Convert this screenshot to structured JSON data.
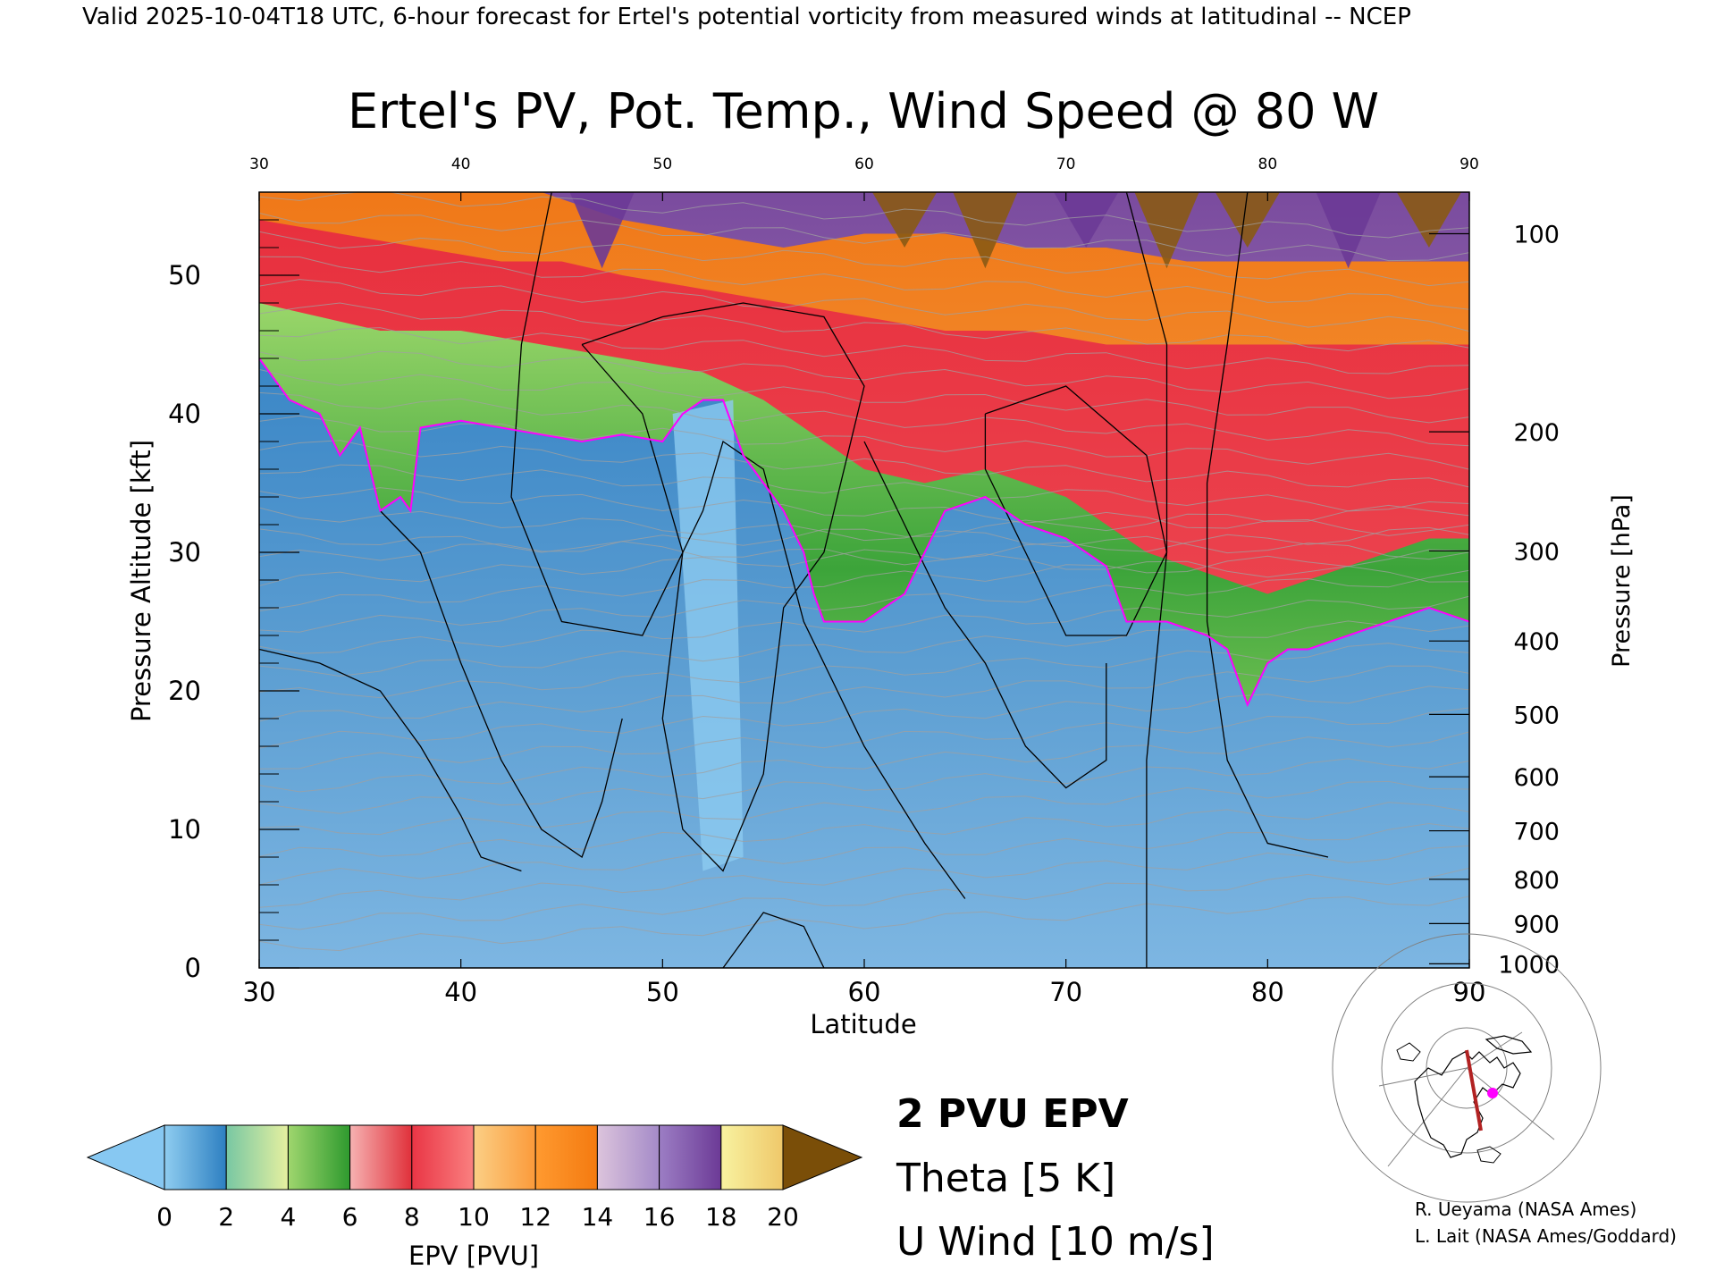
{
  "header": "Valid 2025-10-04T18 UTC, 6-hour forecast for Ertel's potential vorticity from measured winds at latitudinal -- NCEP",
  "chart_data": {
    "type": "heatmap",
    "title": "Ertel's PV, Pot. Temp., Wind Speed @ 80 W",
    "xlabel": "Latitude",
    "ylabel": "Pressure Altitude [kft]",
    "ylabel_right": "Pressure [hPa]",
    "xlim": [
      30,
      90
    ],
    "ylim": [
      0,
      56
    ],
    "x_ticks": [
      30,
      40,
      50,
      60,
      70,
      80,
      90
    ],
    "x_tick_labels": [
      "30",
      "40",
      "50",
      "60",
      "70",
      "80",
      "90"
    ],
    "top_tick_labels": [
      "30",
      "40",
      "50",
      "60",
      "70",
      "80",
      "90"
    ],
    "y_ticks": [
      0,
      10,
      20,
      30,
      40,
      50
    ],
    "y_tick_labels": [
      "0",
      "10",
      "20",
      "30",
      "40",
      "50"
    ],
    "pressure_axis": [
      {
        "label": "100",
        "kft": 53
      },
      {
        "label": "200",
        "kft": 38.7
      },
      {
        "label": "300",
        "kft": 30.1
      },
      {
        "label": "400",
        "kft": 23.6
      },
      {
        "label": "500",
        "kft": 18.3
      },
      {
        "label": "600",
        "kft": 13.8
      },
      {
        "label": "700",
        "kft": 9.9
      },
      {
        "label": "800",
        "kft": 6.4
      },
      {
        "label": "900",
        "kft": 3.2
      },
      {
        "label": "1000",
        "kft": 0.3
      }
    ],
    "fill_field": "EPV [PVU]",
    "pv_levels": [
      0,
      2,
      4,
      6,
      8,
      10,
      12,
      14,
      16,
      18,
      20
    ],
    "colorbar": {
      "label": "EPV [PVU]",
      "tick_labels": [
        "0",
        "2",
        "4",
        "6",
        "8",
        "10",
        "12",
        "14",
        "16",
        "18",
        "20"
      ],
      "under_color": "#87c8f2",
      "over_color": "#7a4e08",
      "segments": [
        [
          "#8fcdf0",
          "#2d7fc1"
        ],
        [
          "#78c7a3",
          "#e6f0a0"
        ],
        [
          "#9fd66e",
          "#2e9a2e"
        ],
        [
          "#f6b2b2",
          "#e0303a"
        ],
        [
          "#e93545",
          "#fa8080"
        ],
        [
          "#fbcf85",
          "#fb9a3a"
        ],
        [
          "#ff9a30",
          "#f47a10"
        ],
        [
          "#dcc4dc",
          "#a48ac8"
        ],
        [
          "#9c7ec4",
          "#6c3a96"
        ],
        [
          "#f8f2a0",
          "#efc86a"
        ]
      ]
    },
    "tropopause_2pvu_kft": [
      [
        30,
        44
      ],
      [
        31.5,
        41
      ],
      [
        33,
        40
      ],
      [
        34,
        37
      ],
      [
        35,
        39
      ],
      [
        36,
        33
      ],
      [
        37,
        34
      ],
      [
        37.5,
        33
      ],
      [
        38,
        39
      ],
      [
        40,
        39.5
      ],
      [
        42,
        39
      ],
      [
        44,
        38.5
      ],
      [
        46,
        38
      ],
      [
        48,
        38.5
      ],
      [
        50,
        38
      ],
      [
        51,
        40
      ],
      [
        52,
        41
      ],
      [
        53,
        41
      ],
      [
        54,
        37
      ],
      [
        55,
        35
      ],
      [
        56,
        33
      ],
      [
        57,
        30
      ],
      [
        57.5,
        27
      ],
      [
        58,
        25
      ],
      [
        60,
        25
      ],
      [
        62,
        27
      ],
      [
        64,
        33
      ],
      [
        66,
        34
      ],
      [
        68,
        32
      ],
      [
        70,
        31
      ],
      [
        72,
        29
      ],
      [
        73,
        25
      ],
      [
        75,
        25
      ],
      [
        77,
        24
      ],
      [
        78,
        23
      ],
      [
        79,
        19
      ],
      [
        80,
        22
      ],
      [
        81,
        23
      ],
      [
        82,
        23
      ],
      [
        84,
        24
      ],
      [
        86,
        25
      ],
      [
        88,
        26
      ],
      [
        90,
        25
      ]
    ],
    "pv_band_tops_kft": {
      "green_top": [
        [
          30,
          48
        ],
        [
          33,
          47
        ],
        [
          36,
          46
        ],
        [
          40,
          46
        ],
        [
          44,
          45
        ],
        [
          48,
          44
        ],
        [
          52,
          43
        ],
        [
          55,
          41
        ],
        [
          58,
          38
        ],
        [
          60,
          36
        ],
        [
          63,
          35
        ],
        [
          66,
          36
        ],
        [
          68,
          35
        ],
        [
          70,
          34
        ],
        [
          72,
          32
        ],
        [
          74,
          30
        ],
        [
          76,
          29
        ],
        [
          78,
          28
        ],
        [
          80,
          27
        ],
        [
          82,
          28
        ],
        [
          84,
          29
        ],
        [
          86,
          30
        ],
        [
          88,
          31
        ],
        [
          90,
          31
        ]
      ],
      "red_top": [
        [
          30,
          54
        ],
        [
          34,
          53
        ],
        [
          38,
          52
        ],
        [
          42,
          51
        ],
        [
          45,
          51
        ],
        [
          48,
          50
        ],
        [
          52,
          49
        ],
        [
          56,
          48
        ],
        [
          60,
          47
        ],
        [
          64,
          46
        ],
        [
          68,
          46
        ],
        [
          72,
          45
        ],
        [
          76,
          45
        ],
        [
          80,
          45
        ],
        [
          84,
          45
        ],
        [
          88,
          45
        ],
        [
          90,
          45
        ]
      ],
      "orange_top": [
        [
          30,
          56
        ],
        [
          40,
          56
        ],
        [
          44,
          56
        ],
        [
          48,
          54
        ],
        [
          52,
          53
        ],
        [
          56,
          52
        ],
        [
          60,
          53
        ],
        [
          64,
          53
        ],
        [
          68,
          52
        ],
        [
          72,
          52
        ],
        [
          76,
          51
        ],
        [
          80,
          51
        ],
        [
          84,
          51
        ],
        [
          88,
          51
        ],
        [
          90,
          51
        ]
      ]
    },
    "theta_contour_interval_K": 5,
    "u_wind_contour_interval_ms": 10,
    "legend_2pvu": "2 PVU EPV",
    "legend_theta": "Theta [5 K]",
    "legend_uwind": "U Wind [10 m/s]",
    "colors": {
      "tropopause": "#ff00ff",
      "theta": "#a0a0a0",
      "uwind": "#000000"
    }
  },
  "credits": [
    "R. Ueyama (NASA Ames)",
    "L. Lait (NASA Ames/Goddard)"
  ]
}
